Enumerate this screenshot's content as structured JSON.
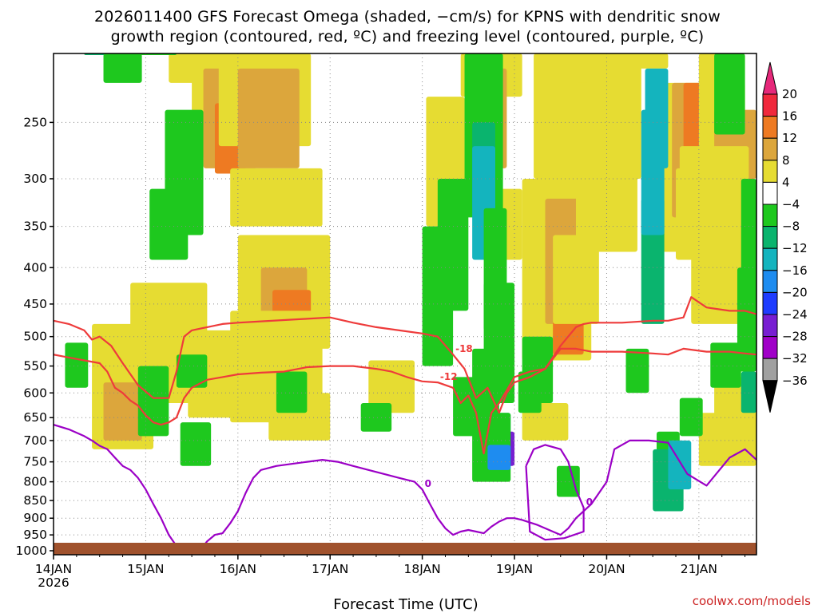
{
  "title": {
    "line1": "2026011400 GFS Forecast Omega (shaded, −cm/s) for KPNS with dendritic snow",
    "line2": "growth region (contoured, red, ºC) and freezing level (contoured, purple, ºC)"
  },
  "credit": "coolwx.com/models",
  "chart_data": {
    "type": "heatmap",
    "title": "2026011400 GFS Forecast Omega (shaded, −cm/s) for KPNS with dendritic snow growth region (contoured, red, ºC) and freezing level (contoured, purple, ºC)",
    "xlabel": "Forecast Time (UTC)",
    "ylabel": "",
    "x_ticks": [
      "14JAN\n2026",
      "15JAN",
      "16JAN",
      "17JAN",
      "18JAN",
      "19JAN",
      "20JAN",
      "21JAN"
    ],
    "x_tick_hours": [
      0,
      24,
      48,
      72,
      96,
      120,
      144,
      168
    ],
    "xlim_hours": [
      0,
      183
    ],
    "y_ticks": [
      250,
      300,
      350,
      400,
      450,
      500,
      550,
      600,
      650,
      700,
      750,
      800,
      850,
      900,
      950,
      1000
    ],
    "ylim_hPa": [
      200,
      1013
    ],
    "y_reversed": true,
    "grid": "dotted",
    "colorbar": {
      "position": "right",
      "labels": [
        20,
        16,
        12,
        8,
        4,
        -4,
        -8,
        -12,
        -16,
        -20,
        -24,
        -28,
        -32,
        -36
      ],
      "bands": [
        {
          "range": [
            16,
            20
          ],
          "color": "#f0283c"
        },
        {
          "range": [
            12,
            16
          ],
          "color": "#ee7a22"
        },
        {
          "range": [
            8,
            12
          ],
          "color": "#dca63c"
        },
        {
          "range": [
            4,
            8
          ],
          "color": "#e6dc32"
        },
        {
          "range": [
            -4,
            4
          ],
          "color": "#ffffff"
        },
        {
          "range": [
            -8,
            -4
          ],
          "color": "#1ec81e"
        },
        {
          "range": [
            -12,
            -8
          ],
          "color": "#0ab46e"
        },
        {
          "range": [
            -16,
            -12
          ],
          "color": "#14b4be"
        },
        {
          "range": [
            -20,
            -16
          ],
          "color": "#1e8cf0"
        },
        {
          "range": [
            -24,
            -20
          ],
          "color": "#1e3cff"
        },
        {
          "range": [
            -28,
            -24
          ],
          "color": "#781ed2"
        },
        {
          "range": [
            -32,
            -28
          ],
          "color": "#a000c8"
        },
        {
          "range": [
            -36,
            -32
          ],
          "color": "#a0a0a0"
        }
      ],
      "top_arrow_color": "#e6287a",
      "bottom_arrow_color": "#000000"
    },
    "series": [
      {
        "name": "-18",
        "color": "#ee3b3b",
        "x": [
          0,
          4,
          8,
          10,
          12,
          15,
          18,
          22,
          26,
          30,
          32,
          34,
          36,
          40,
          44,
          48,
          54,
          60,
          66,
          72,
          78,
          84,
          90,
          96,
          100,
          104,
          107,
          110,
          113,
          116,
          118,
          120,
          124,
          128,
          132,
          136,
          138,
          140,
          148,
          156,
          160,
          164,
          166,
          170,
          176,
          180,
          183
        ],
        "y": [
          475,
          480,
          490,
          505,
          500,
          515,
          545,
          585,
          610,
          610,
          560,
          500,
          490,
          485,
          480,
          478,
          476,
          474,
          472,
          470,
          478,
          485,
          490,
          495,
          500,
          530,
          555,
          610,
          590,
          640,
          600,
          580,
          570,
          555,
          515,
          485,
          480,
          478,
          478,
          475,
          475,
          470,
          440,
          455,
          460,
          460,
          465
        ]
      },
      {
        "name": "-12",
        "color": "#ee3b3b",
        "x": [
          0,
          4,
          8,
          12,
          14,
          16,
          18,
          20,
          22,
          24,
          26,
          28,
          30,
          32,
          34,
          36,
          40,
          44,
          48,
          54,
          60,
          66,
          72,
          78,
          84,
          88,
          92,
          96,
          100,
          104,
          106,
          108,
          110,
          112,
          114,
          116,
          118,
          120,
          124,
          128,
          132,
          136,
          140,
          148,
          156,
          160,
          164,
          170,
          176,
          180,
          183
        ],
        "y": [
          530,
          535,
          540,
          545,
          560,
          590,
          600,
          615,
          625,
          645,
          660,
          665,
          660,
          650,
          610,
          590,
          575,
          570,
          565,
          562,
          560,
          552,
          550,
          550,
          555,
          560,
          570,
          578,
          580,
          590,
          620,
          605,
          640,
          730,
          640,
          620,
          595,
          570,
          560,
          555,
          520,
          520,
          525,
          525,
          528,
          530,
          520,
          525,
          525,
          528,
          530
        ]
      },
      {
        "name": "0",
        "color": "#9b00c6",
        "x": [
          0,
          4,
          8,
          10,
          12,
          14,
          16,
          18,
          20,
          22,
          24,
          26,
          28,
          30,
          32,
          34,
          36,
          38,
          40,
          42,
          44,
          46,
          48,
          50,
          52,
          54,
          58,
          62,
          66,
          70,
          74,
          78,
          82,
          86,
          90,
          94,
          96,
          98,
          100,
          102,
          104,
          106,
          108,
          110,
          112,
          114,
          116,
          118,
          120,
          122,
          126,
          130,
          132,
          134,
          136,
          140,
          144,
          146,
          150,
          155,
          160,
          165,
          170,
          176,
          180,
          183
        ],
        "y": [
          665,
          675,
          690,
          700,
          712,
          720,
          740,
          760,
          770,
          790,
          820,
          860,
          900,
          950,
          985,
          1010,
          1015,
          1000,
          970,
          950,
          945,
          915,
          880,
          830,
          790,
          770,
          760,
          755,
          750,
          745,
          750,
          760,
          770,
          780,
          790,
          800,
          820,
          860,
          900,
          930,
          950,
          940,
          935,
          940,
          945,
          925,
          910,
          900,
          900,
          905,
          920,
          940,
          950,
          930,
          900,
          860,
          800,
          720,
          700,
          700,
          705,
          780,
          810,
          740,
          720,
          745
        ]
      },
      {
        "name": "0",
        "color": "#9b00c6",
        "x": [
          123,
          125,
          128,
          130,
          132,
          134,
          136,
          138,
          138,
          133,
          128,
          124,
          123
        ],
        "y": [
          760,
          720,
          710,
          715,
          720,
          750,
          820,
          870,
          940,
          960,
          965,
          940,
          760
        ]
      }
    ]
  }
}
